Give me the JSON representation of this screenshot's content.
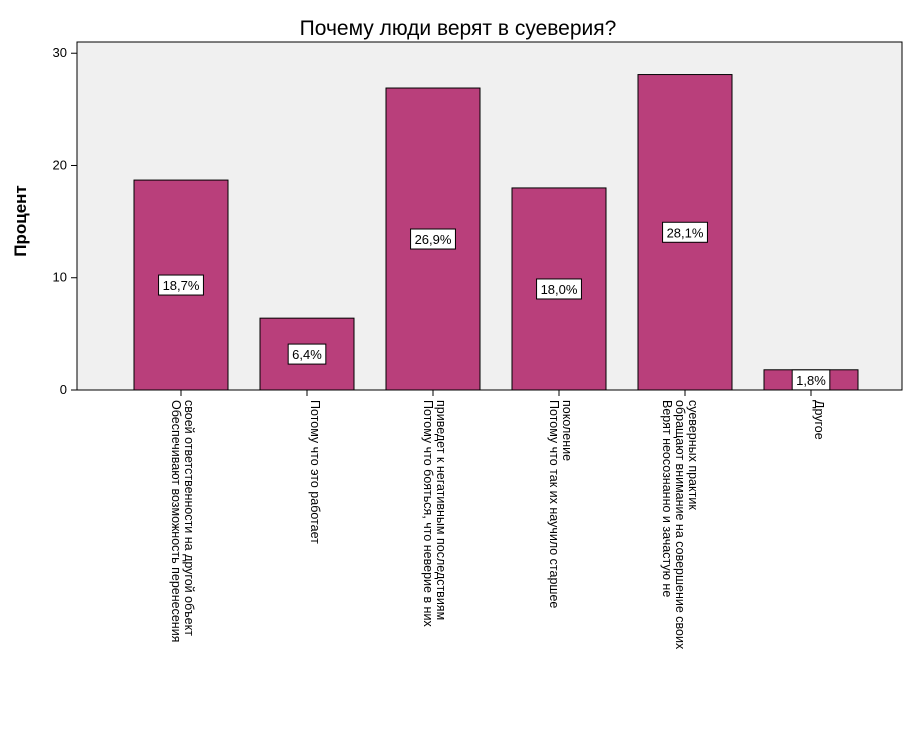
{
  "chart_data": {
    "type": "bar",
    "title": "Почему люди верят в суеверия?",
    "xlabel": "",
    "ylabel": "Процент",
    "ylim": [
      0,
      31
    ],
    "yticks": [
      0,
      10,
      20,
      30
    ],
    "grid": false,
    "colors": {
      "bar": "#b93f7b",
      "plot_bg": "#f0f0f0",
      "axis": "#000000"
    },
    "categories": [
      [
        "Обеспечивают возможность перенесения",
        "своей ответственности на другой объект"
      ],
      [
        "Потому что это работает"
      ],
      [
        "Потому что бояться, что неверие в них",
        "приведет к негативным последствиям"
      ],
      [
        "Потому что так их научило старшее",
        "поколение"
      ],
      [
        "Верят неосознанно и зачастую не",
        "обращают внимание на совершение своих",
        "суеверных практик"
      ],
      [
        "Другое"
      ]
    ],
    "values": [
      18.7,
      6.4,
      26.9,
      18.0,
      28.1,
      1.8
    ],
    "data_labels": [
      "18,7%",
      "6,4%",
      "26,9%",
      "18,0%",
      "28,1%",
      "1,8%"
    ]
  }
}
